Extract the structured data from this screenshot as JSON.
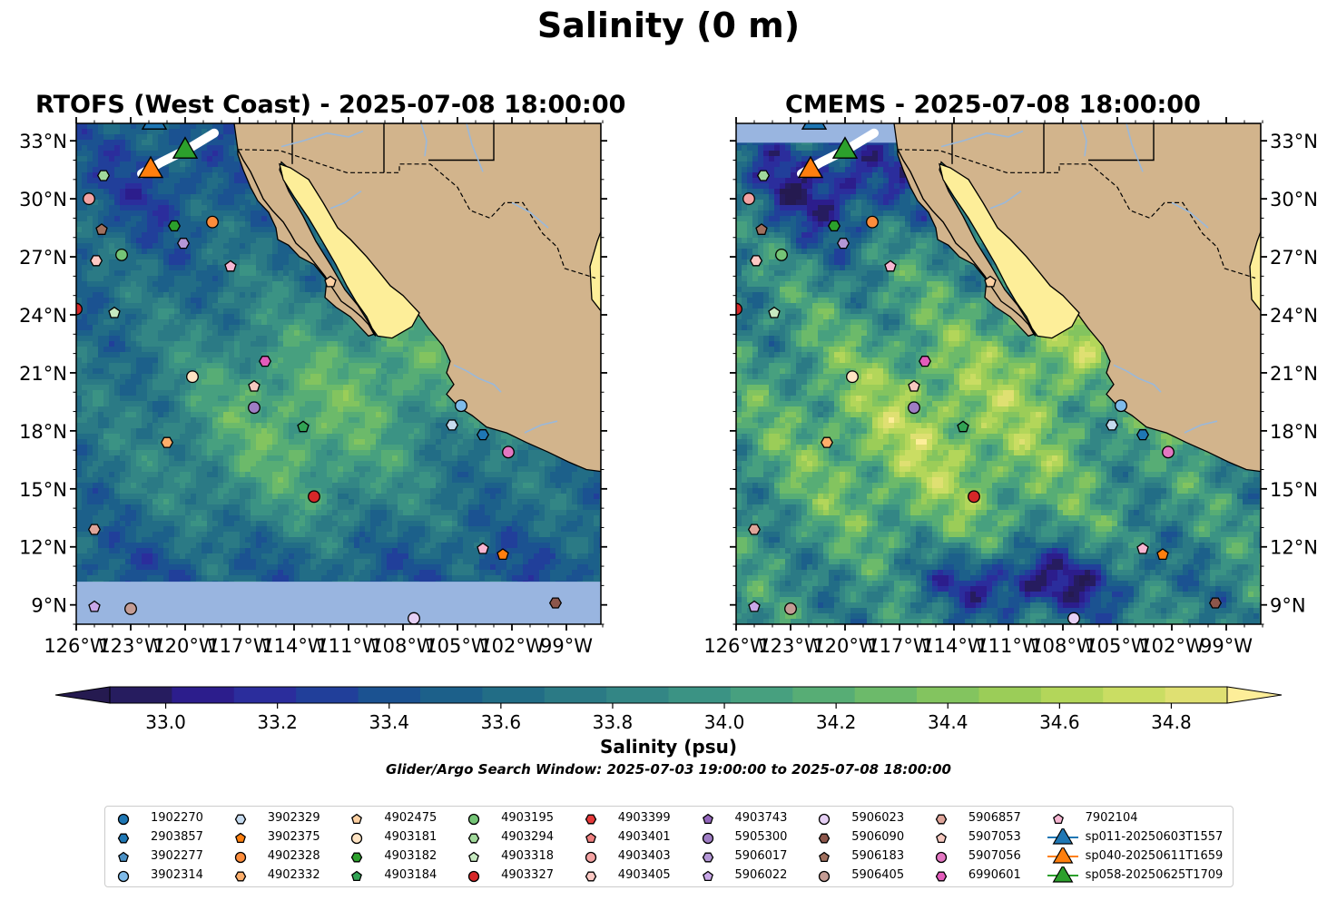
{
  "figure": {
    "suptitle": "Salinity (0 m)",
    "search_window": "Glider/Argo Search Window: 2025-07-03 19:00:00 to 2025-07-08 18:00:00"
  },
  "panels": [
    {
      "id": "rtofs",
      "title": "RTOFS (West Coast) - 2025-07-08 18:00:00",
      "nodata_band": [
        8.0,
        10.2
      ]
    },
    {
      "id": "cmems",
      "title": "CMEMS - 2025-07-08 18:00:00",
      "nodata_band": [
        32.9,
        33.9
      ]
    }
  ],
  "axes": {
    "lon_ticks": [
      "126°W",
      "123°W",
      "120°W",
      "117°W",
      "114°W",
      "111°W",
      "108°W",
      "105°W",
      "102°W",
      "99°W"
    ],
    "lat_ticks": [
      "9°N",
      "12°N",
      "15°N",
      "18°N",
      "21°N",
      "24°N",
      "27°N",
      "30°N",
      "33°N"
    ],
    "lon_range": [
      -126,
      -97.1
    ],
    "lat_range": [
      8.0,
      33.9
    ]
  },
  "colorbar": {
    "label": "Salinity (psu)",
    "range": [
      32.9,
      34.9
    ],
    "step": 0.1,
    "extend": "both",
    "ticks": [
      "33.0",
      "33.2",
      "33.4",
      "33.6",
      "33.8",
      "34.0",
      "34.2",
      "34.4",
      "34.6",
      "34.8"
    ],
    "colors": [
      "#261c5f",
      "#2c1d8c",
      "#2b2d9c",
      "#213f9a",
      "#1b5291",
      "#1c608a",
      "#226d86",
      "#2b7a85",
      "#338685",
      "#3b9384",
      "#47a07f",
      "#57ad75",
      "#6cba6a",
      "#83c45f",
      "#9bcd58",
      "#b3d65a",
      "#cadd63",
      "#dfe072"
    ],
    "under_color": "#251a50",
    "over_color": "#fdee99"
  },
  "colors": {
    "land": "#d2b48c",
    "gulf": "#fdee99",
    "nodata": "#99b5e0",
    "river": "#9ab8da"
  },
  "chart_data": {
    "type": "scatter",
    "title": "Salinity (0 m)",
    "xlabel": "",
    "ylabel": "",
    "xlim": [
      -126,
      -97.1
    ],
    "ylim": [
      8.0,
      33.9
    ],
    "series": [
      {
        "name": "1902270",
        "marker": "circle",
        "color": "#1f77b4",
        "points": []
      },
      {
        "name": "2903857",
        "marker": "hexagon",
        "color": "#1f77b4",
        "points": [
          [
            -103.6,
            17.8
          ]
        ]
      },
      {
        "name": "3902277",
        "marker": "pentagon",
        "color": "#4a90c4",
        "points": [
          [
            -120.2,
            34.5
          ]
        ]
      },
      {
        "name": "3902314",
        "marker": "circle",
        "color": "#7fbbea",
        "points": [
          [
            -104.8,
            19.3
          ]
        ]
      },
      {
        "name": "3902329",
        "marker": "hexagon",
        "color": "#c6dbef",
        "points": [
          [
            -105.3,
            18.3
          ]
        ]
      },
      {
        "name": "3902375",
        "marker": "pentagon",
        "color": "#ff7f0e",
        "points": [
          [
            -102.5,
            11.6
          ]
        ]
      },
      {
        "name": "4902328",
        "marker": "circle",
        "color": "#fd8d3c",
        "points": [
          [
            -118.5,
            28.8
          ]
        ]
      },
      {
        "name": "4902332",
        "marker": "hexagon",
        "color": "#fdae6b",
        "points": [
          [
            -121.0,
            17.4
          ]
        ]
      },
      {
        "name": "4902475",
        "marker": "pentagon",
        "color": "#fdd0a2",
        "points": [
          [
            -112.0,
            25.7
          ]
        ]
      },
      {
        "name": "4903181",
        "marker": "circle",
        "color": "#ffe4c4",
        "points": [
          [
            -119.6,
            20.8
          ]
        ]
      },
      {
        "name": "4903182",
        "marker": "hexagon",
        "color": "#2ca02c",
        "points": [
          [
            -120.6,
            28.6
          ]
        ]
      },
      {
        "name": "4903184",
        "marker": "pentagon",
        "color": "#31a354",
        "points": [
          [
            -113.5,
            18.2
          ]
        ]
      },
      {
        "name": "4903195",
        "marker": "circle",
        "color": "#74c476",
        "points": [
          [
            -123.5,
            27.1
          ]
        ]
      },
      {
        "name": "4903294",
        "marker": "hexagon",
        "color": "#a1d99b",
        "points": [
          [
            -124.5,
            31.2
          ]
        ]
      },
      {
        "name": "4903318",
        "marker": "pentagon",
        "color": "#c7e9c0",
        "points": [
          [
            -123.9,
            24.1
          ]
        ]
      },
      {
        "name": "4903327",
        "marker": "circle",
        "color": "#d62728",
        "points": [
          [
            -112.9,
            14.6
          ]
        ]
      },
      {
        "name": "4903399",
        "marker": "hexagon",
        "color": "#e6393a",
        "points": []
      },
      {
        "name": "4903401",
        "marker": "pentagon",
        "color": "#f08080",
        "points": []
      },
      {
        "name": "4903403",
        "marker": "circle",
        "color": "#f4a3a3",
        "points": [
          [
            -125.3,
            30.0
          ]
        ]
      },
      {
        "name": "4903405",
        "marker": "hexagon",
        "color": "#fcc9c4",
        "points": [
          [
            -124.9,
            26.8
          ]
        ]
      },
      {
        "name": "4903743",
        "marker": "pentagon",
        "color": "#9467bd",
        "points": []
      },
      {
        "name": "5905300",
        "marker": "circle",
        "color": "#9f7dc4",
        "points": [
          [
            -116.2,
            19.2
          ]
        ]
      },
      {
        "name": "5906017",
        "marker": "hexagon",
        "color": "#b497d6",
        "points": [
          [
            -120.1,
            27.7
          ]
        ]
      },
      {
        "name": "5906022",
        "marker": "pentagon",
        "color": "#c9a8e8",
        "points": [
          [
            -125.0,
            8.9
          ]
        ]
      },
      {
        "name": "5906023",
        "marker": "circle",
        "color": "#e6d0f5",
        "points": [
          [
            -107.4,
            8.3
          ]
        ]
      },
      {
        "name": "5906090",
        "marker": "hexagon",
        "color": "#8c564b",
        "points": [
          [
            -99.6,
            9.1
          ]
        ]
      },
      {
        "name": "5906183",
        "marker": "pentagon",
        "color": "#a0705e",
        "points": [
          [
            -124.6,
            28.4
          ]
        ]
      },
      {
        "name": "5906405",
        "marker": "circle",
        "color": "#c49c94",
        "points": [
          [
            -123.0,
            8.8
          ]
        ]
      },
      {
        "name": "5906857",
        "marker": "hexagon",
        "color": "#dfa59a",
        "points": [
          [
            -125.0,
            12.9
          ]
        ]
      },
      {
        "name": "5907053",
        "marker": "pentagon",
        "color": "#f7c9c0",
        "points": [
          [
            -116.2,
            20.3
          ]
        ]
      },
      {
        "name": "5907056",
        "marker": "circle",
        "color": "#e377c2",
        "points": [
          [
            -102.2,
            16.9
          ]
        ]
      },
      {
        "name": "6990601",
        "marker": "hexagon",
        "color": "#e35cbb",
        "points": [
          [
            -115.6,
            21.6
          ]
        ]
      },
      {
        "name": "7902104",
        "marker": "pentagon",
        "color": "#f7b6d2",
        "points": [
          [
            -117.5,
            26.5
          ],
          [
            -103.6,
            11.9
          ]
        ]
      },
      {
        "name": "sp011-20250603T1557",
        "marker": "triangle",
        "color": "#1f77b4",
        "points": [
          [
            -121.7,
            34.1
          ]
        ]
      },
      {
        "name": "sp040-20250611T1659",
        "marker": "triangle",
        "color": "#ff7f0e",
        "points": [
          [
            -121.9,
            31.6
          ]
        ]
      },
      {
        "name": "sp058-20250625T1709",
        "marker": "triangle",
        "color": "#2ca02c",
        "points": [
          [
            -120.0,
            32.6
          ]
        ]
      }
    ],
    "offscreen_edge_markers": [
      {
        "color": "#d62728",
        "lon": -126.0,
        "lat": 24.3
      }
    ]
  }
}
